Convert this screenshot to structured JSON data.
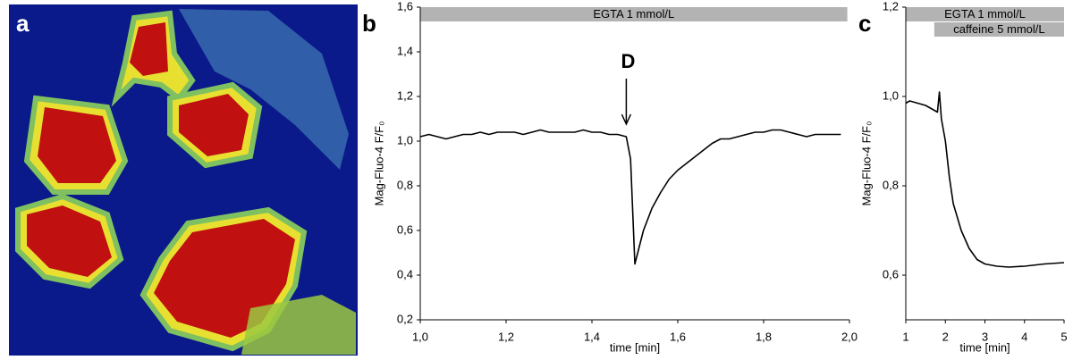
{
  "image_panel": {
    "label": "a"
  },
  "chart_data": [
    {
      "type": "line",
      "panel_label": "b",
      "x_label": "time [min]",
      "y_label": "Mag-Fluo-4 F/F₀",
      "xlim": [
        1.0,
        2.0
      ],
      "xticks": [
        {
          "value": 1.0,
          "label": "1,0"
        },
        {
          "value": 1.2,
          "label": "1,2"
        },
        {
          "value": 1.4,
          "label": "1,4"
        },
        {
          "value": 1.6,
          "label": "1,6"
        },
        {
          "value": 1.8,
          "label": "1,8"
        },
        {
          "value": 2.0,
          "label": "2,0"
        }
      ],
      "ylim": [
        0.2,
        1.6
      ],
      "yticks": [
        {
          "value": 0.2,
          "label": "0,2"
        },
        {
          "value": 0.4,
          "label": "0,4"
        },
        {
          "value": 0.6,
          "label": "0,6"
        },
        {
          "value": 0.8,
          "label": "0,8"
        },
        {
          "value": 1.0,
          "label": "1,0"
        },
        {
          "value": 1.2,
          "label": "1,2"
        },
        {
          "value": 1.4,
          "label": "1,4"
        },
        {
          "value": 1.6,
          "label": "1,6"
        }
      ],
      "treatments": [
        {
          "label": "EGTA 1 mmol/L",
          "start": 1.0,
          "end": 1.995
        }
      ],
      "annotations": [
        {
          "text": "D",
          "x": 1.48
        }
      ],
      "series": [
        {
          "color": "#000000",
          "x": [
            1.0,
            1.02,
            1.04,
            1.06,
            1.08,
            1.1,
            1.12,
            1.14,
            1.16,
            1.18,
            1.2,
            1.22,
            1.24,
            1.26,
            1.28,
            1.3,
            1.32,
            1.34,
            1.36,
            1.38,
            1.4,
            1.42,
            1.44,
            1.46,
            1.48,
            1.49,
            1.5,
            1.52,
            1.54,
            1.56,
            1.58,
            1.6,
            1.62,
            1.64,
            1.66,
            1.68,
            1.7,
            1.72,
            1.74,
            1.76,
            1.78,
            1.8,
            1.82,
            1.84,
            1.86,
            1.88,
            1.9,
            1.92,
            1.94,
            1.96,
            1.98
          ],
          "values": [
            1.02,
            1.03,
            1.02,
            1.01,
            1.02,
            1.03,
            1.03,
            1.04,
            1.03,
            1.04,
            1.04,
            1.04,
            1.03,
            1.04,
            1.05,
            1.04,
            1.04,
            1.04,
            1.04,
            1.05,
            1.04,
            1.04,
            1.03,
            1.03,
            1.02,
            0.92,
            0.45,
            0.6,
            0.7,
            0.77,
            0.83,
            0.87,
            0.9,
            0.93,
            0.96,
            0.99,
            1.01,
            1.01,
            1.02,
            1.03,
            1.04,
            1.04,
            1.05,
            1.05,
            1.04,
            1.03,
            1.02,
            1.03,
            1.03,
            1.03,
            1.03
          ]
        }
      ]
    },
    {
      "type": "line",
      "panel_label": "c",
      "x_label": "time [min]",
      "y_label": "Mag-Fluo-4 F/F₀",
      "xlim": [
        1,
        5
      ],
      "xticks": [
        1,
        2,
        3,
        4,
        5
      ],
      "ylim": [
        0.5,
        1.2
      ],
      "yticks": [
        {
          "value": 0.6,
          "label": "0,6"
        },
        {
          "value": 0.8,
          "label": "0,8"
        },
        {
          "value": 1.0,
          "label": "1,0"
        },
        {
          "value": 1.2,
          "label": "1,2"
        }
      ],
      "treatments": [
        {
          "label": "EGTA 1 mmol/L",
          "start": 1,
          "end": 5
        },
        {
          "label": "caffeine 5 mmol/L",
          "start": 1.72,
          "end": 5
        }
      ],
      "series": [
        {
          "color": "#000000",
          "x": [
            1.0,
            1.1,
            1.3,
            1.5,
            1.7,
            1.8,
            1.85,
            1.9,
            2.0,
            2.1,
            2.2,
            2.4,
            2.6,
            2.8,
            3.0,
            3.3,
            3.6,
            4.0,
            4.5,
            5.0
          ],
          "values": [
            0.985,
            0.99,
            0.985,
            0.98,
            0.97,
            0.965,
            1.01,
            0.95,
            0.9,
            0.82,
            0.76,
            0.7,
            0.66,
            0.635,
            0.625,
            0.62,
            0.618,
            0.62,
            0.625,
            0.628
          ]
        }
      ]
    }
  ]
}
